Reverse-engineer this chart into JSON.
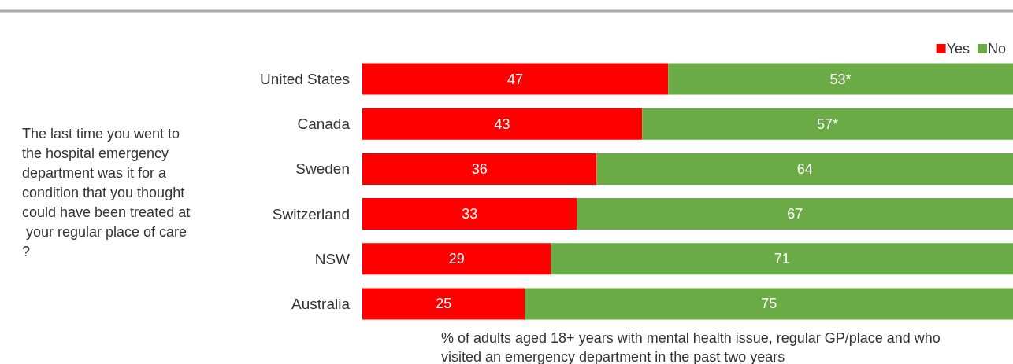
{
  "chart_data": {
    "type": "bar",
    "orientation": "horizontal",
    "stacked": true,
    "categories": [
      "United States",
      "Canada",
      "Sweden",
      "Switzerland",
      "NSW",
      "Australia"
    ],
    "series": [
      {
        "name": "Yes",
        "color": "#ff0000",
        "values": [
          47,
          43,
          36,
          33,
          29,
          25
        ],
        "value_labels": [
          "47",
          "43",
          "36",
          "33",
          "29",
          "25"
        ]
      },
      {
        "name": "No",
        "color": "#6aab46",
        "values": [
          53,
          57,
          64,
          67,
          71,
          75
        ],
        "value_labels": [
          "53*",
          "57*",
          "64",
          "67",
          "71",
          "75"
        ]
      }
    ],
    "xlim": [
      0,
      100
    ],
    "tick_labels": "y",
    "xlabel": "% of adults aged 18+ years with mental health issue, regular GP/place and who visited an emergency department in the past two years",
    "annotations": [
      "The last time you went to the hospital emergency department was it for a condition that you thought could have been treated at your regular place of care?"
    ],
    "legend": "top right"
  }
}
